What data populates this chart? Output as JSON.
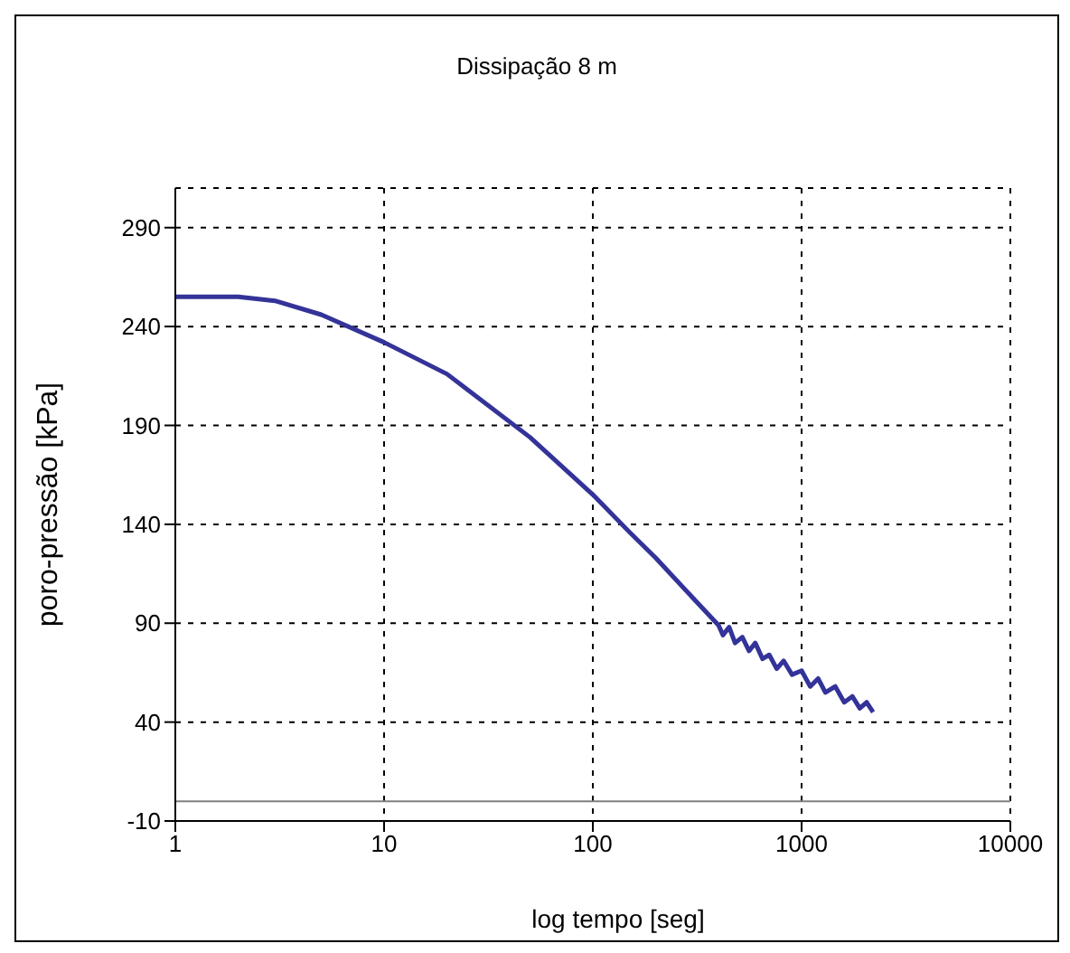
{
  "chart_data": {
    "type": "line",
    "title": "Dissipação 8 m",
    "xlabel": "log tempo [seg]",
    "ylabel": "poro-pressão [kPa]",
    "log": "x",
    "x": [
      1,
      2,
      3,
      5,
      10,
      20,
      50,
      100,
      150,
      200,
      300,
      400,
      420,
      450,
      480,
      520,
      560,
      600,
      650,
      700,
      760,
      820,
      900,
      1000,
      1100,
      1200,
      1300,
      1450,
      1600,
      1750,
      1900,
      2050,
      2200
    ],
    "series": [
      {
        "color": "#333399",
        "values": [
          255,
          255,
          253,
          246,
          232,
          216,
          184,
          155,
          136,
          123,
          103,
          89,
          84,
          88,
          80,
          83,
          76,
          80,
          72,
          74,
          67,
          71,
          64,
          66,
          58,
          62,
          55,
          58,
          50,
          53,
          47,
          50,
          45
        ]
      }
    ],
    "xlim": [
      1,
      10000
    ],
    "xticks": [
      1,
      10,
      100,
      1000,
      10000
    ],
    "ylim": [
      -10,
      310
    ],
    "yticks": [
      -10,
      40,
      90,
      140,
      190,
      240,
      290
    ],
    "grid": true,
    "marker": "none",
    "line_style": "solid",
    "ref_lines": [
      {
        "axis": "y",
        "value": 0,
        "color": "#808080"
      }
    ]
  }
}
